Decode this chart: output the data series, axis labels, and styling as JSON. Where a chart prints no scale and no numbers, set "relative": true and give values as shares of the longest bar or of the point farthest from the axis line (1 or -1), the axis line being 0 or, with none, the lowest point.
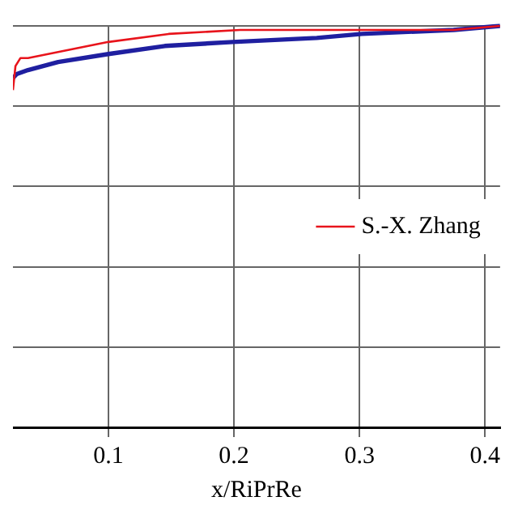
{
  "chart_data": {
    "type": "line",
    "xlabel": "x/RiPrRe",
    "relative": true,
    "xlim": [
      0.024,
      0.412
    ],
    "xticks": [
      0.1,
      0.2,
      0.3,
      0.4
    ],
    "grid": true,
    "legend": "right",
    "marker": "none",
    "line_style": "solid",
    "series": [
      {
        "color": "#1f1fa0",
        "x": [
          0.024,
          0.027,
          0.036,
          0.06,
          0.1,
          0.145,
          0.199,
          0.266,
          0.302,
          0.375,
          0.412
        ],
        "values": [
          0.87,
          0.88,
          0.89,
          0.91,
          0.93,
          0.95,
          0.96,
          0.97,
          0.98,
          0.99,
          1.0
        ]
      },
      {
        "name": "S.-X. Zhang",
        "color": "#e8141c",
        "x": [
          0.024,
          0.026,
          0.03,
          0.036,
          0.1,
          0.148,
          0.205,
          0.302,
          0.375,
          0.412
        ],
        "values": [
          0.84,
          0.9,
          0.92,
          0.92,
          0.96,
          0.98,
          0.99,
          0.99,
          0.99,
          1.0
        ]
      }
    ]
  }
}
